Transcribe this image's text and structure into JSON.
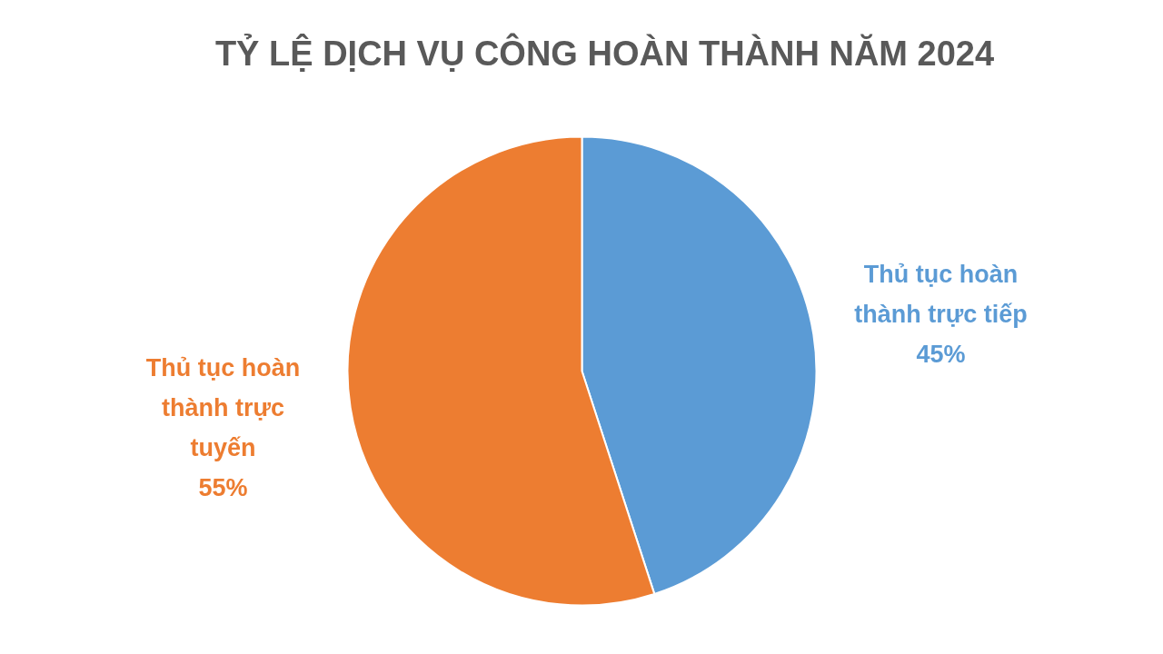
{
  "chart_data": {
    "type": "pie",
    "title": "TỶ LỆ DỊCH VỤ CÔNG HOÀN THÀNH NĂM 2024",
    "categories": [
      "Thủ tục hoàn thành trực tiếp",
      "Thủ tục hoàn thành trực tuyến"
    ],
    "values": [
      45,
      55
    ],
    "colors": [
      "#5b9bd5",
      "#ed7d31"
    ],
    "value_labels": [
      "45%",
      "55%"
    ]
  }
}
